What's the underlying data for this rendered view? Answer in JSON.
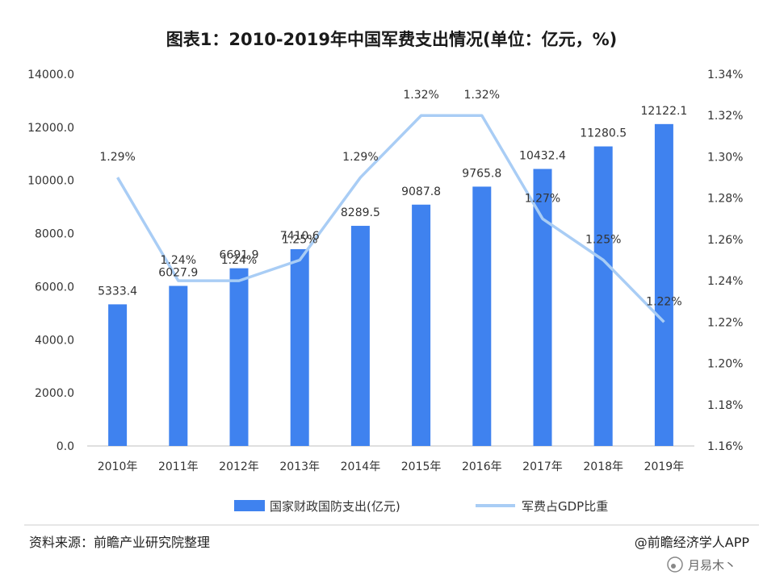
{
  "chart_data": {
    "type": "bar+line",
    "title": "图表1：2010-2019年中国军费支出情况(单位：亿元，%)",
    "categories": [
      "2010年",
      "2011年",
      "2012年",
      "2013年",
      "2014年",
      "2015年",
      "2016年",
      "2017年",
      "2018年",
      "2019年"
    ],
    "series": [
      {
        "name": "国家财政国防支出(亿元)",
        "type": "bar",
        "axis": "left",
        "values": [
          5333.4,
          6027.9,
          6691.9,
          7410.6,
          8289.5,
          9087.8,
          9765.8,
          10432.4,
          11280.5,
          12122.1
        ],
        "labels": [
          "5333.4",
          "6027.9",
          "6691.9",
          "7410.6",
          "8289.5",
          "9087.8",
          "9765.8",
          "10432.4",
          "11280.5",
          "12122.1"
        ]
      },
      {
        "name": "军费占GDP比重",
        "type": "line",
        "axis": "right",
        "values": [
          1.29,
          1.24,
          1.24,
          1.25,
          1.29,
          1.32,
          1.32,
          1.27,
          1.25,
          1.22
        ],
        "labels": [
          "1.29%",
          "1.24%",
          "1.24%",
          "1.25%",
          "1.29%",
          "1.32%",
          "1.32%",
          "1.27%",
          "1.25%",
          "1.22%"
        ]
      }
    ],
    "y_left": {
      "min": 0,
      "max": 14000,
      "ticks": [
        "0.0",
        "2000.0",
        "4000.0",
        "6000.0",
        "8000.0",
        "10000.0",
        "12000.0",
        "14000.0"
      ]
    },
    "y_right": {
      "min": 1.16,
      "max": 1.34,
      "ticks": [
        "1.16%",
        "1.18%",
        "1.20%",
        "1.22%",
        "1.24%",
        "1.26%",
        "1.28%",
        "1.30%",
        "1.32%",
        "1.34%"
      ]
    },
    "legend_position": "bottom",
    "grid": false,
    "colors": {
      "bar": "#3f82ef",
      "line": "#a9cdf5"
    }
  },
  "footer": {
    "source": "资料来源：前瞻产业研究院整理",
    "brand": "@前瞻经济学人APP"
  },
  "watermark": {
    "text": "月易木丶"
  }
}
